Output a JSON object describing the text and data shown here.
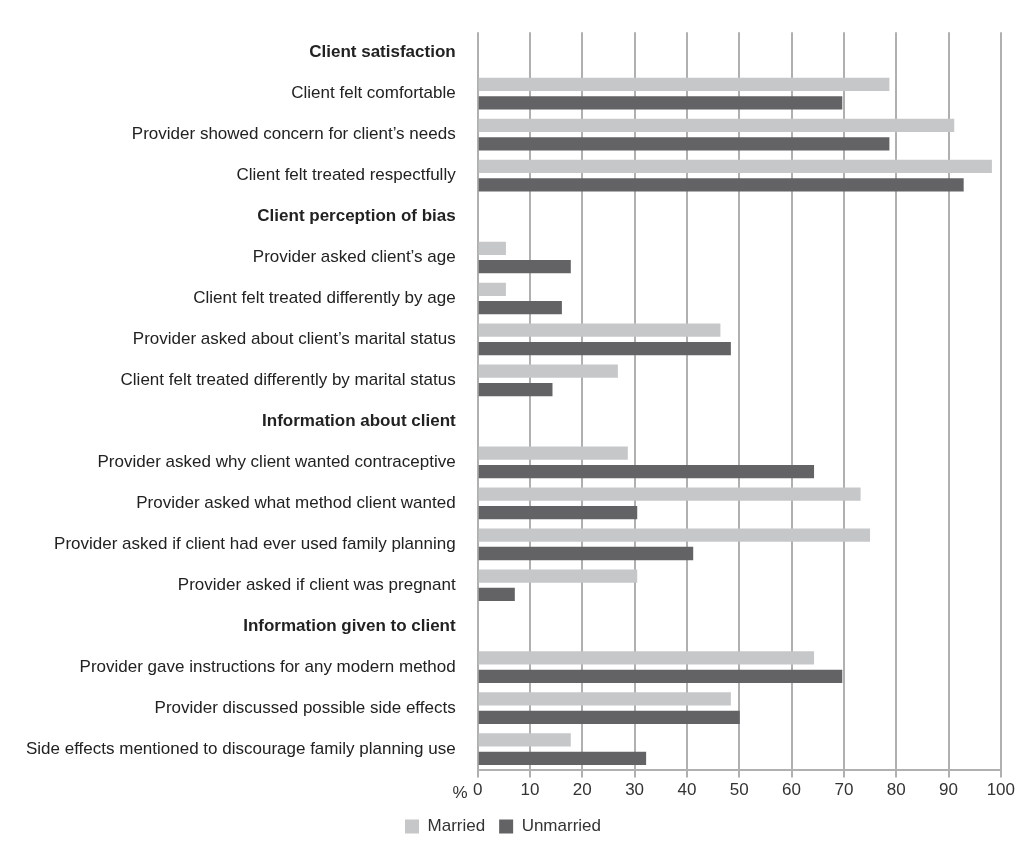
{
  "chart_data": {
    "type": "bar",
    "orientation": "horizontal",
    "xlabel": "%",
    "categories": [
      "Client satisfaction",
      "Client felt comfortable",
      "Provider showed concern for client’s needs",
      "Client felt treated respectfully",
      "Client perception of bias",
      "Provider asked client’s age",
      "Client felt treated differently by age",
      "Provider asked about client’s marital status",
      "Client felt treated differently by marital status",
      "Information about client",
      "Provider asked why client wanted contraceptive",
      "Provider asked what method client wanted",
      "Provider asked if client had ever used family planning",
      "Provider asked if client was pregnant",
      "Information given to client",
      "Provider gave instructions for any modern method",
      "Provider discussed possible side effects",
      "Side effects mentioned to discourage family planning use"
    ],
    "series": [
      {
        "name": "Married",
        "color": "#c6c7c9",
        "values": [
          null,
          78.7,
          91.1,
          98.3,
          null,
          5.4,
          5.4,
          46.4,
          26.8,
          null,
          28.7,
          73.2,
          75.0,
          30.5,
          null,
          64.3,
          48.4,
          17.8
        ]
      },
      {
        "name": "Unmarried",
        "color": "#636366",
        "values": [
          null,
          69.7,
          78.7,
          92.9,
          null,
          17.8,
          16.1,
          48.4,
          14.3,
          null,
          64.3,
          30.5,
          41.2,
          7.1,
          null,
          69.7,
          50.1,
          32.2
        ]
      }
    ],
    "xlim": [
      0,
      100
    ],
    "xticks": [
      0,
      10,
      20,
      30,
      40,
      50,
      60,
      70,
      80,
      90,
      100
    ],
    "grid": "x",
    "legend": "bottom"
  }
}
